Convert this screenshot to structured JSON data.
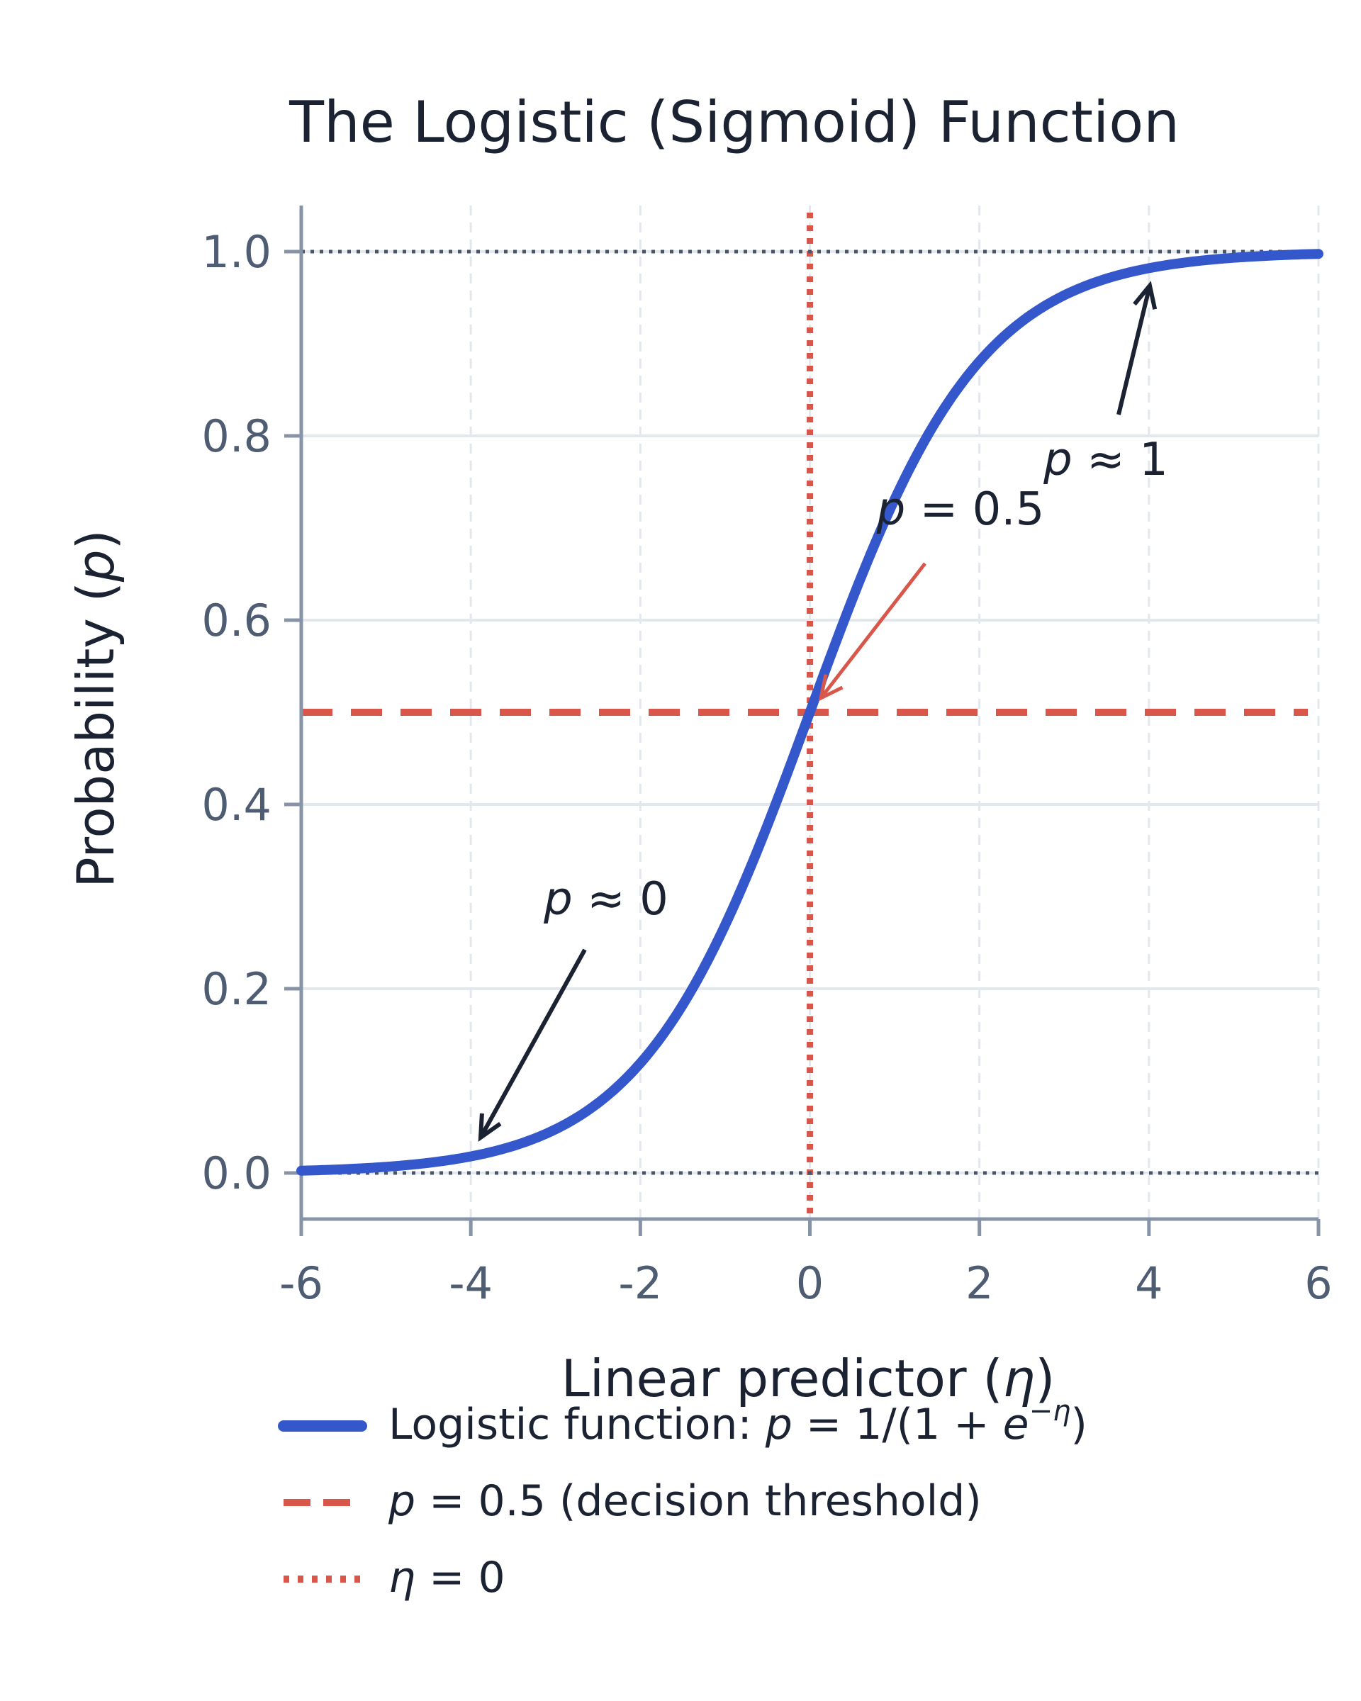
{
  "chart_data": {
    "type": "line",
    "title": "The Logistic (Sigmoid) Function",
    "xlabel": "Linear predictor (η)",
    "ylabel": "Probability (p)",
    "xlim": [
      -6,
      6
    ],
    "ylim": [
      -0.05,
      1.05
    ],
    "xticks": [
      -6,
      -4,
      -2,
      0,
      2,
      4,
      6
    ],
    "xtick_labels": [
      "-6",
      "-4",
      "-2",
      "0",
      "2",
      "4",
      "6"
    ],
    "yticks": [
      0.0,
      0.2,
      0.4,
      0.6,
      0.8,
      1.0
    ],
    "ytick_labels": [
      "0.0",
      "0.2",
      "0.4",
      "0.6",
      "0.8",
      "1.0"
    ],
    "grid": true,
    "legend_position": "bottom",
    "series": [
      {
        "name": "Logistic function: p = 1/(1 + e^−η)",
        "function": "logistic",
        "x": [
          -6,
          -5,
          -4,
          -3,
          -2,
          -1,
          0,
          1,
          2,
          3,
          4,
          5,
          6
        ],
        "y": [
          0.0025,
          0.0067,
          0.018,
          0.047,
          0.119,
          0.269,
          0.5,
          0.731,
          0.881,
          0.953,
          0.982,
          0.9933,
          0.9975
        ],
        "color": "#3557cc"
      }
    ],
    "reference_lines": [
      {
        "name": "p = 0.5 (decision threshold)",
        "orientation": "horizontal",
        "value": 0.5,
        "style": "dashed",
        "color": "#d9574a"
      },
      {
        "name": "η = 0",
        "orientation": "vertical",
        "value": 0,
        "style": "dotted",
        "color": "#d9574a"
      },
      {
        "orientation": "horizontal",
        "value": 0.0,
        "style": "dotted",
        "color": "#4a5568"
      },
      {
        "orientation": "horizontal",
        "value": 1.0,
        "style": "dotted",
        "color": "#4a5568"
      }
    ],
    "annotations": [
      {
        "text": "p ≈ 0",
        "target": [
          -4,
          0.018
        ],
        "text_at": [
          -2.4,
          0.3
        ],
        "color": "#1b2333"
      },
      {
        "text": "p = 0.5",
        "target": [
          0,
          0.5
        ],
        "text_at": [
          1.8,
          0.72
        ],
        "color": "#d9574a"
      },
      {
        "text": "p ≈ 1",
        "target": [
          4,
          0.982
        ],
        "text_at": [
          3.6,
          0.78
        ],
        "color": "#1b2333"
      }
    ],
    "legend": [
      {
        "prefix": "Logistic function: ",
        "math": "p = 1/(1 + e",
        "sup": "−η",
        "suffix": ")",
        "style": "solid",
        "color": "#3557cc"
      },
      {
        "prefix": "",
        "math": "p = 0.5",
        "sup": "",
        "suffix": " (decision threshold)",
        "style": "dashed",
        "color": "#d9574a"
      },
      {
        "prefix": "",
        "math": "η = 0",
        "sup": "",
        "suffix": "",
        "style": "dotted",
        "color": "#d9574a"
      }
    ],
    "colors": {
      "curve": "#3557cc",
      "threshold": "#d9574a",
      "bounds": "#4a5568",
      "grid": "#e3e8ef",
      "axis": "#8794a8"
    }
  }
}
